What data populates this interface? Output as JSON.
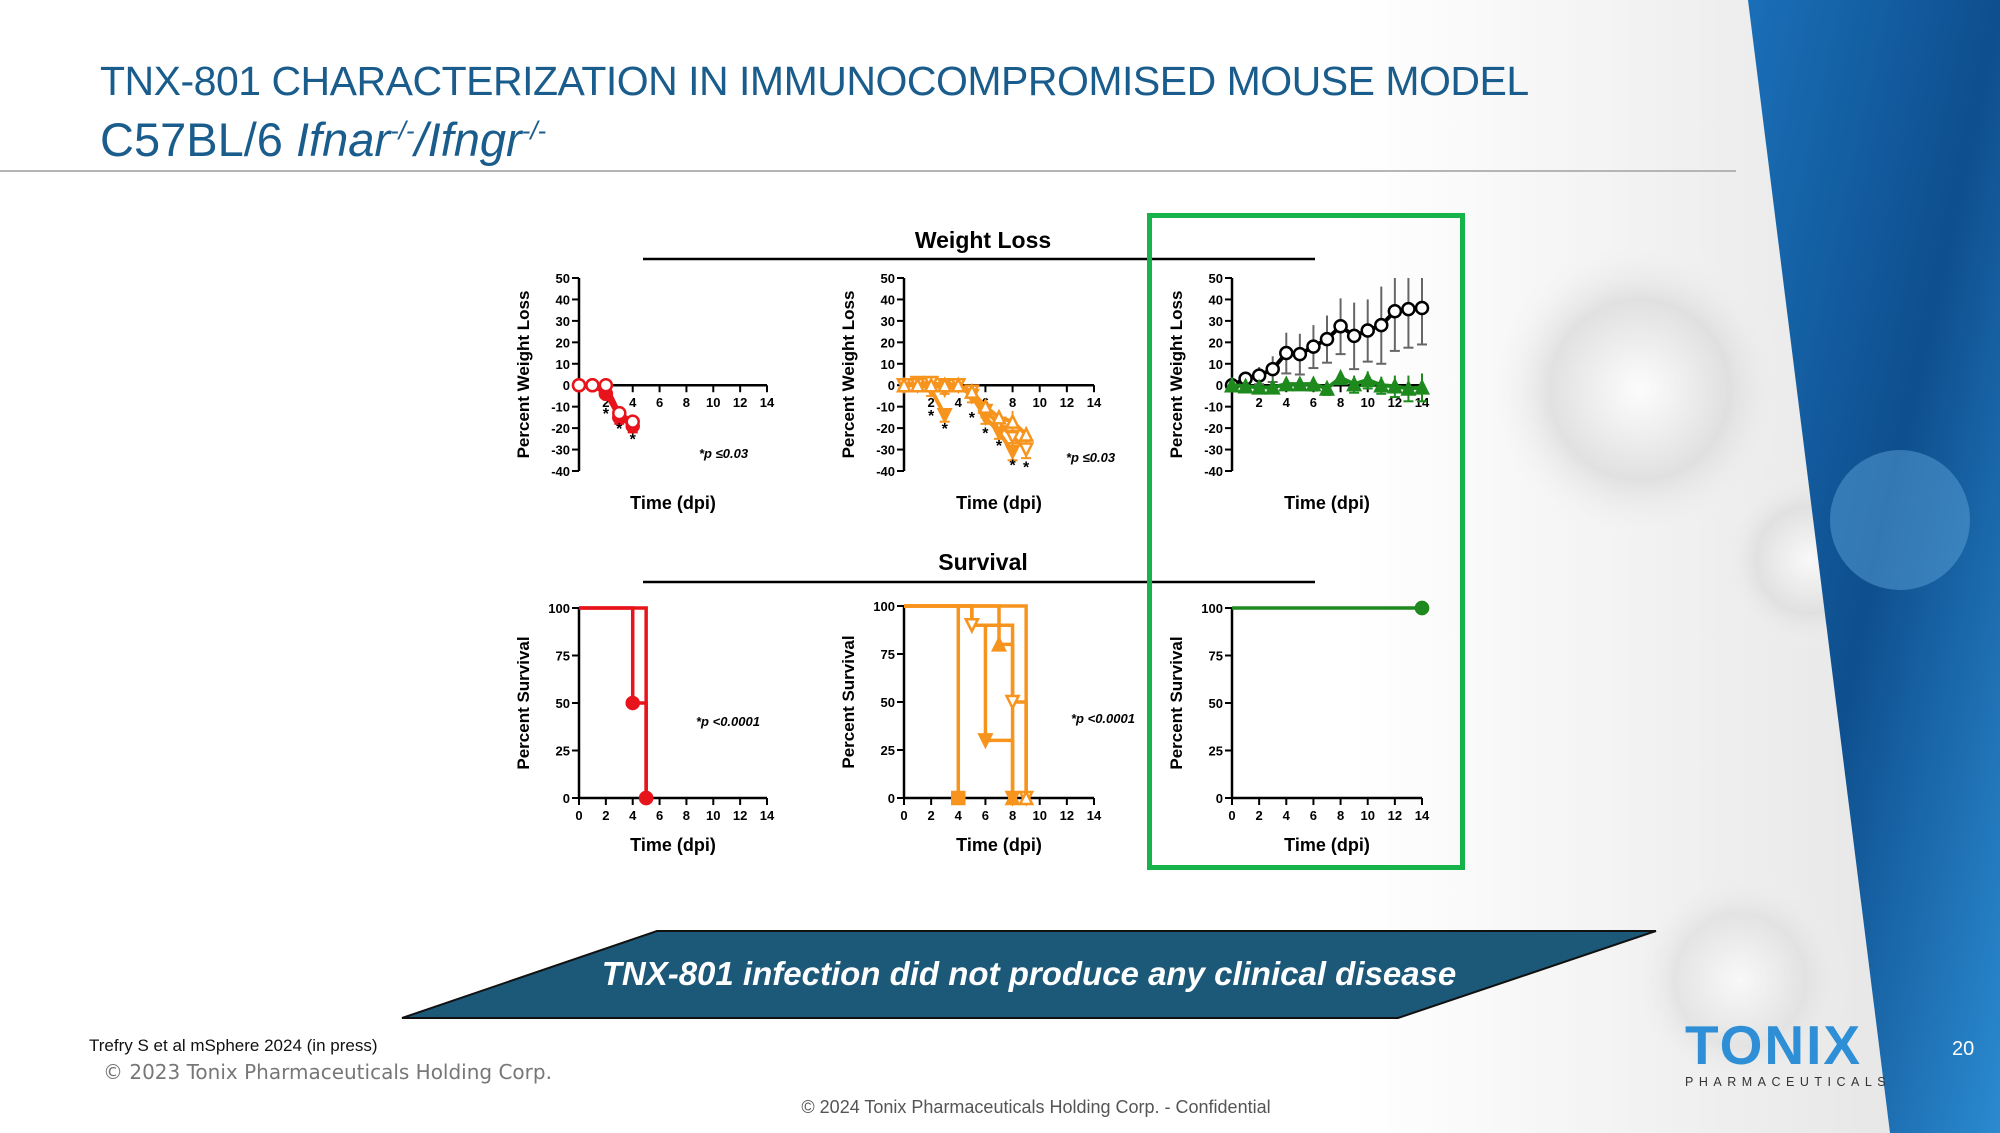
{
  "slide": {
    "title": "TNX-801 CHARACTERIZATION IN IMMUNOCOMPROMISED MOUSE MODEL",
    "subtitle_prefix": "C57BL/6 ",
    "subtitle_gene1": "Ifnar",
    "subtitle_sup1": "-/-",
    "subtitle_sep": "/",
    "subtitle_gene2": "Ifngr",
    "subtitle_sup2": "-/-",
    "banner": "TNX-801 infection did not produce any clinical disease",
    "reference": "Trefry S et al mSphere 2024 (in press)",
    "copyright_2023": "© 2023 Tonix Pharmaceuticals Holding Corp.",
    "copyright_2024": "© 2024 Tonix Pharmaceuticals Holding Corp. - Confidential",
    "page_number": "20",
    "logo_word": "TONIX",
    "logo_sub": "PHARMACEUTICALS",
    "section_weight": "Weight Loss",
    "section_survival": "Survival",
    "highlight_color": "#16b24a"
  },
  "chart_data": [
    {
      "type": "line",
      "name": "weight-red",
      "ylabel": "Percent Weight Loss",
      "xlabel": "Time (dpi)",
      "xlim": [
        0,
        14
      ],
      "ylim": [
        -40,
        50
      ],
      "xticks": [
        2,
        4,
        6,
        8,
        10,
        12,
        14
      ],
      "yticks": [
        -40,
        -30,
        -20,
        -10,
        0,
        10,
        20,
        30,
        40,
        50
      ],
      "annotation": "*p ≤0.03",
      "stars": [
        [
          2,
          -12
        ],
        [
          3,
          -19
        ],
        [
          4,
          -24
        ]
      ],
      "color": "#e8141c",
      "series": [
        {
          "marker": "filled-circle",
          "x": [
            0,
            1,
            2,
            3,
            4
          ],
          "y": [
            0,
            0,
            -4,
            -15,
            -19
          ],
          "err": [
            0,
            2,
            2,
            3,
            3
          ]
        },
        {
          "marker": "open-circle",
          "x": [
            0,
            1,
            2,
            3,
            4
          ],
          "y": [
            0,
            0,
            0,
            -13,
            -17
          ],
          "err": [
            0,
            1,
            1,
            2,
            2
          ]
        }
      ]
    },
    {
      "type": "line",
      "name": "weight-orange",
      "ylabel": "Percent Weight Loss",
      "xlabel": "Time (dpi)",
      "xlim": [
        0,
        14
      ],
      "ylim": [
        -40,
        50
      ],
      "xticks": [
        2,
        4,
        6,
        8,
        10,
        12,
        14
      ],
      "yticks": [
        -40,
        -30,
        -20,
        -10,
        0,
        10,
        20,
        30,
        40,
        50
      ],
      "annotation": "*p ≤0.03",
      "stars": [
        [
          2,
          -13
        ],
        [
          3,
          -19
        ],
        [
          5,
          -14
        ],
        [
          6,
          -21
        ],
        [
          7,
          -27
        ],
        [
          8,
          -36
        ],
        [
          9,
          -37
        ]
      ],
      "color": "#f7941d",
      "series": [
        {
          "marker": "filled-triangle-down",
          "x": [
            0,
            1,
            2,
            3
          ],
          "y": [
            0,
            1,
            -2,
            -14
          ],
          "err": [
            0,
            2,
            3,
            3
          ]
        },
        {
          "marker": "filled-triangle-down",
          "x": [
            0,
            1,
            2,
            3,
            4,
            5,
            6,
            7,
            8
          ],
          "y": [
            0,
            1,
            1,
            0,
            0,
            -5,
            -15,
            -22,
            -31
          ],
          "err": [
            0,
            2,
            2,
            2,
            2,
            3,
            3,
            3,
            4
          ]
        },
        {
          "marker": "open-triangle-down",
          "x": [
            0,
            1,
            2,
            3,
            4,
            5,
            6,
            7,
            8,
            9
          ],
          "y": [
            0,
            0,
            1,
            -2,
            0,
            -3,
            -12,
            -18,
            -24,
            -30
          ],
          "err": [
            0,
            2,
            2,
            2,
            2,
            3,
            3,
            3,
            3,
            4
          ]
        },
        {
          "marker": "open-triangle-up",
          "x": [
            0,
            1,
            2,
            3,
            4,
            5,
            6,
            7,
            8,
            9
          ],
          "y": [
            0,
            0,
            0,
            0,
            0,
            -3,
            -10,
            -15,
            -17,
            -23
          ],
          "err": [
            0,
            2,
            2,
            2,
            2,
            2,
            3,
            2,
            5,
            3
          ]
        }
      ]
    },
    {
      "type": "line",
      "name": "weight-control",
      "ylabel": "Percent Weight Loss",
      "xlabel": "Time (dpi)",
      "xlim": [
        0,
        14
      ],
      "ylim": [
        -40,
        50
      ],
      "xticks": [
        2,
        4,
        6,
        8,
        10,
        12,
        14
      ],
      "yticks": [
        -40,
        -30,
        -20,
        -10,
        0,
        10,
        20,
        30,
        40,
        50
      ],
      "annotation": "",
      "stars": [],
      "series": [
        {
          "marker": "open-circle",
          "color": "#000000",
          "x": [
            0,
            1,
            2,
            3,
            4,
            5,
            6,
            7,
            8,
            9,
            10,
            11,
            12,
            13,
            14
          ],
          "y": [
            0,
            3,
            4.5,
            7.5,
            15,
            14.5,
            18,
            21.5,
            27.5,
            23,
            25.5,
            28,
            34.5,
            35.5,
            36
          ],
          "err": [
            0,
            0,
            4,
            6,
            9.5,
            9.5,
            10,
            11,
            13,
            15.5,
            14.5,
            18,
            18.5,
            18,
            17
          ]
        },
        {
          "marker": "filled-triangle-up",
          "color": "#1e8a1e",
          "x": [
            0,
            1,
            2,
            3,
            4,
            5,
            6,
            7,
            8,
            9,
            10,
            11,
            12,
            13,
            14
          ],
          "y": [
            0,
            -0.5,
            -1,
            -1,
            0.5,
            0.5,
            0.5,
            -1.5,
            3.5,
            0.5,
            2.5,
            0,
            -0.5,
            -1.5,
            -1
          ],
          "err": [
            0,
            1,
            2,
            1,
            2,
            1.5,
            3,
            3,
            3,
            4,
            4,
            4,
            5,
            6,
            6.5
          ]
        }
      ]
    },
    {
      "type": "line",
      "name": "survival-red",
      "ylabel": "Percent Survival",
      "xlabel": "Time (dpi)",
      "xlim": [
        0,
        14
      ],
      "ylim": [
        0,
        100
      ],
      "xticks": [
        0,
        2,
        4,
        6,
        8,
        10,
        12,
        14
      ],
      "yticks": [
        0,
        25,
        50,
        75,
        100
      ],
      "annotation": "*p <0.0001",
      "stars": [],
      "color": "#e8141c",
      "series": [
        {
          "marker": "filled-circle",
          "x": [
            0,
            4,
            5
          ],
          "y": [
            100,
            50,
            0
          ]
        },
        {
          "marker": "filled-circle",
          "x": [
            0,
            5
          ],
          "y": [
            100,
            0
          ]
        }
      ]
    },
    {
      "type": "line",
      "name": "survival-orange",
      "ylabel": "Percent Survival",
      "xlabel": "Time (dpi)",
      "xlim": [
        0,
        14
      ],
      "ylim": [
        0,
        100
      ],
      "xticks": [
        0,
        2,
        4,
        6,
        8,
        10,
        12,
        14
      ],
      "yticks": [
        0,
        25,
        50,
        75,
        100
      ],
      "annotation": "*p <0.0001",
      "stars": [],
      "color": "#f7941d",
      "series": [
        {
          "marker": "filled-square",
          "x": [
            0,
            4
          ],
          "y": [
            100,
            0
          ]
        },
        {
          "marker": "filled-triangle-down",
          "x": [
            0,
            5,
            6,
            8
          ],
          "y": [
            100,
            90,
            30,
            0
          ]
        },
        {
          "marker": "filled-triangle-up",
          "x": [
            0,
            7,
            8
          ],
          "y": [
            100,
            80,
            0
          ]
        },
        {
          "marker": "open-triangle-down",
          "x": [
            0,
            5,
            8,
            9
          ],
          "y": [
            100,
            90,
            50,
            0
          ]
        },
        {
          "marker": "open-triangle-up",
          "x": [
            0,
            9
          ],
          "y": [
            100,
            0
          ]
        }
      ]
    },
    {
      "type": "line",
      "name": "survival-control",
      "ylabel": "Percent Survival",
      "xlabel": "Time (dpi)",
      "xlim": [
        0,
        14
      ],
      "ylim": [
        0,
        100
      ],
      "xticks": [
        0,
        2,
        4,
        6,
        8,
        10,
        12,
        14
      ],
      "yticks": [
        0,
        25,
        50,
        75,
        100
      ],
      "annotation": "",
      "stars": [],
      "series": [
        {
          "marker": "filled-circle",
          "color": "#1e8a1e",
          "x": [
            0,
            14
          ],
          "y": [
            100,
            100
          ]
        }
      ]
    }
  ]
}
